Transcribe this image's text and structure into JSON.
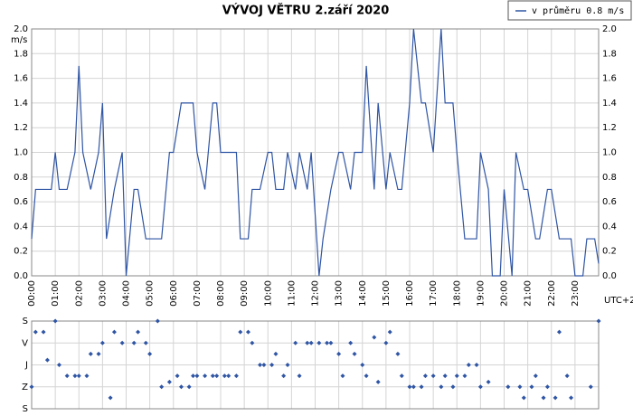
{
  "chart_data": [
    {
      "type": "line",
      "title": "VÝVOJ VĚTRU  2.září 2020",
      "y_label": "m/s",
      "x_note": "UTC+2",
      "legend": "v průměru 0.8 m/s",
      "color": "#2f55a4",
      "grid": true,
      "xlim": [
        0,
        1440
      ],
      "xticks": [
        {
          "value": 0,
          "label": "00:00"
        },
        {
          "value": 60,
          "label": "01:00"
        },
        {
          "value": 120,
          "label": "02:00"
        },
        {
          "value": 180,
          "label": "03:00"
        },
        {
          "value": 240,
          "label": "04:00"
        },
        {
          "value": 300,
          "label": "05:00"
        },
        {
          "value": 360,
          "label": "06:00"
        },
        {
          "value": 420,
          "label": "07:00"
        },
        {
          "value": 480,
          "label": "08:00"
        },
        {
          "value": 540,
          "label": "09:00"
        },
        {
          "value": 600,
          "label": "10:00"
        },
        {
          "value": 660,
          "label": "11:00"
        },
        {
          "value": 720,
          "label": "12:00"
        },
        {
          "value": 780,
          "label": "13:00"
        },
        {
          "value": 840,
          "label": "14:00"
        },
        {
          "value": 900,
          "label": "15:00"
        },
        {
          "value": 960,
          "label": "16:00"
        },
        {
          "value": 1020,
          "label": "17:00"
        },
        {
          "value": 1080,
          "label": "18:00"
        },
        {
          "value": 1140,
          "label": "19:00"
        },
        {
          "value": 1200,
          "label": "20:00"
        },
        {
          "value": 1260,
          "label": "21:00"
        },
        {
          "value": 1320,
          "label": "22:00"
        },
        {
          "value": 1380,
          "label": "23:00"
        }
      ],
      "ylim": [
        0,
        2
      ],
      "yticks": [
        {
          "value": 0,
          "label": "0.0"
        },
        0.2,
        0.4,
        0.6,
        0.8,
        {
          "value": 1,
          "label": "1.0"
        },
        1.2,
        1.4,
        1.6,
        1.8,
        {
          "value": 2,
          "label": "2.0"
        }
      ],
      "x": [
        0,
        10,
        50,
        60,
        70,
        90,
        110,
        120,
        130,
        150,
        170,
        180,
        190,
        210,
        230,
        240,
        260,
        270,
        290,
        330,
        350,
        360,
        380,
        410,
        420,
        440,
        460,
        470,
        480,
        520,
        530,
        550,
        560,
        580,
        600,
        610,
        620,
        640,
        650,
        670,
        680,
        700,
        710,
        730,
        740,
        760,
        780,
        790,
        810,
        820,
        840,
        850,
        870,
        880,
        900,
        910,
        930,
        940,
        960,
        970,
        990,
        1000,
        1020,
        1040,
        1050,
        1070,
        1080,
        1100,
        1130,
        1140,
        1160,
        1170,
        1190,
        1200,
        1220,
        1230,
        1250,
        1260,
        1280,
        1290,
        1310,
        1320,
        1340,
        1370,
        1380,
        1400,
        1410,
        1430,
        1440
      ],
      "values": [
        0.3,
        0.7,
        0.7,
        1.0,
        0.7,
        0.7,
        1.0,
        1.7,
        1.0,
        0.7,
        1.0,
        1.4,
        0.3,
        0.7,
        1.0,
        0.0,
        0.7,
        0.7,
        0.3,
        0.3,
        1.0,
        1.0,
        1.4,
        1.4,
        1.0,
        0.7,
        1.4,
        1.4,
        1.0,
        1.0,
        0.3,
        0.3,
        0.7,
        0.7,
        1.0,
        1.0,
        0.7,
        0.7,
        1.0,
        0.7,
        1.0,
        0.7,
        1.0,
        0.0,
        0.3,
        0.7,
        1.0,
        1.0,
        0.7,
        1.0,
        1.0,
        1.7,
        0.7,
        1.4,
        0.7,
        1.0,
        0.7,
        0.7,
        1.4,
        2.0,
        1.4,
        1.4,
        1.0,
        2.0,
        1.4,
        1.4,
        1.0,
        0.3,
        0.3,
        1.0,
        0.7,
        0.0,
        0.0,
        0.7,
        0.0,
        1.0,
        0.7,
        0.7,
        0.3,
        0.3,
        0.7,
        0.7,
        0.3,
        0.3,
        0.0,
        0.0,
        0.3,
        0.3,
        0.1
      ]
    },
    {
      "type": "scatter",
      "color": "#2f55a4",
      "grid": true,
      "xlim": [
        0,
        1440
      ],
      "xticks": [
        0,
        60,
        120,
        180,
        240,
        300,
        360,
        420,
        480,
        540,
        600,
        660,
        720,
        780,
        840,
        900,
        960,
        1020,
        1080,
        1140,
        1200,
        1260,
        1320,
        1380
      ],
      "ylim": [
        360,
        0
      ],
      "yticks": [
        {
          "value": 0,
          "label": "S"
        },
        {
          "value": 90,
          "label": "V"
        },
        {
          "value": 180,
          "label": "J"
        },
        {
          "value": 270,
          "label": "Z"
        },
        {
          "value": 360,
          "label": "S"
        }
      ],
      "x": [
        0,
        10,
        30,
        40,
        60,
        70,
        90,
        110,
        120,
        140,
        150,
        170,
        180,
        200,
        210,
        230,
        260,
        270,
        290,
        300,
        320,
        330,
        350,
        370,
        380,
        400,
        410,
        420,
        440,
        460,
        470,
        490,
        500,
        520,
        530,
        550,
        560,
        580,
        590,
        610,
        620,
        640,
        650,
        670,
        680,
        700,
        710,
        730,
        750,
        760,
        780,
        790,
        810,
        820,
        840,
        850,
        870,
        880,
        900,
        910,
        930,
        940,
        960,
        970,
        990,
        1000,
        1020,
        1040,
        1050,
        1070,
        1080,
        1100,
        1110,
        1130,
        1140,
        1160,
        1210,
        1240,
        1250,
        1270,
        1280,
        1300,
        1310,
        1330,
        1340,
        1360,
        1370,
        1420,
        1440
      ],
      "values": [
        270,
        45,
        45,
        160,
        0,
        180,
        225,
        225,
        225,
        225,
        135,
        135,
        90,
        315,
        45,
        90,
        90,
        45,
        90,
        135,
        0,
        270,
        250,
        225,
        270,
        270,
        225,
        225,
        225,
        225,
        225,
        225,
        225,
        225,
        45,
        45,
        90,
        180,
        180,
        180,
        135,
        225,
        180,
        90,
        225,
        90,
        90,
        90,
        90,
        90,
        135,
        225,
        90,
        135,
        180,
        225,
        67,
        250,
        90,
        45,
        135,
        225,
        270,
        270,
        270,
        225,
        225,
        270,
        225,
        270,
        225,
        225,
        180,
        180,
        270,
        250,
        270,
        270,
        315,
        270,
        225,
        315,
        270,
        315,
        45,
        225,
        315,
        270,
        0
      ]
    }
  ]
}
